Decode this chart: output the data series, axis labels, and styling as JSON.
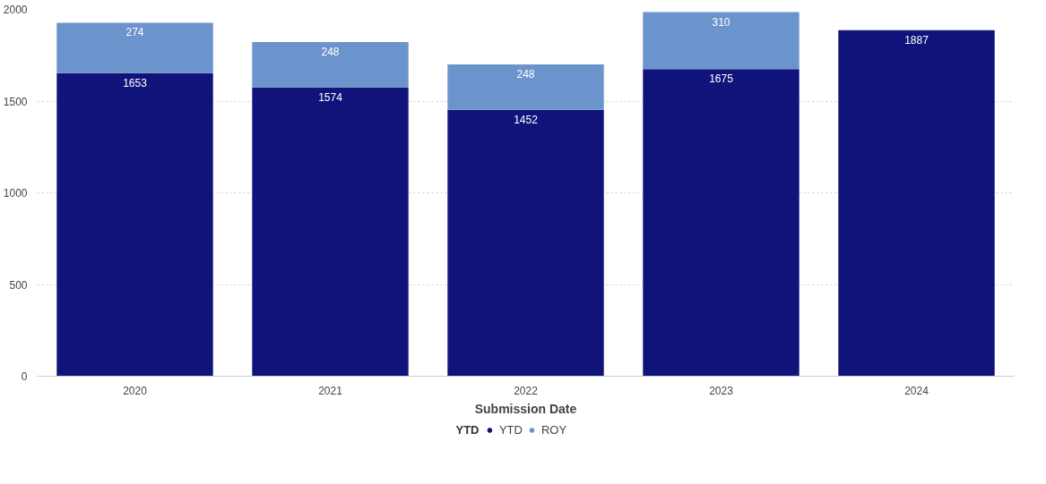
{
  "chart_data": {
    "type": "bar",
    "stacked": true,
    "categories": [
      "2020",
      "2021",
      "2022",
      "2023",
      "2024"
    ],
    "series": [
      {
        "name": "YTD",
        "color": "#10147a",
        "values": [
          1653,
          1574,
          1452,
          1675,
          1887
        ]
      },
      {
        "name": "ROY",
        "color": "#6b93cc",
        "values": [
          274,
          248,
          248,
          310,
          null
        ]
      }
    ],
    "xlabel": "Submission Date",
    "legend_title": "YTD",
    "ylim": [
      0,
      2000
    ],
    "yticks": [
      0,
      500,
      1000,
      1500,
      2000
    ],
    "grid": "y",
    "legend": "bottom",
    "data_labels": true
  }
}
